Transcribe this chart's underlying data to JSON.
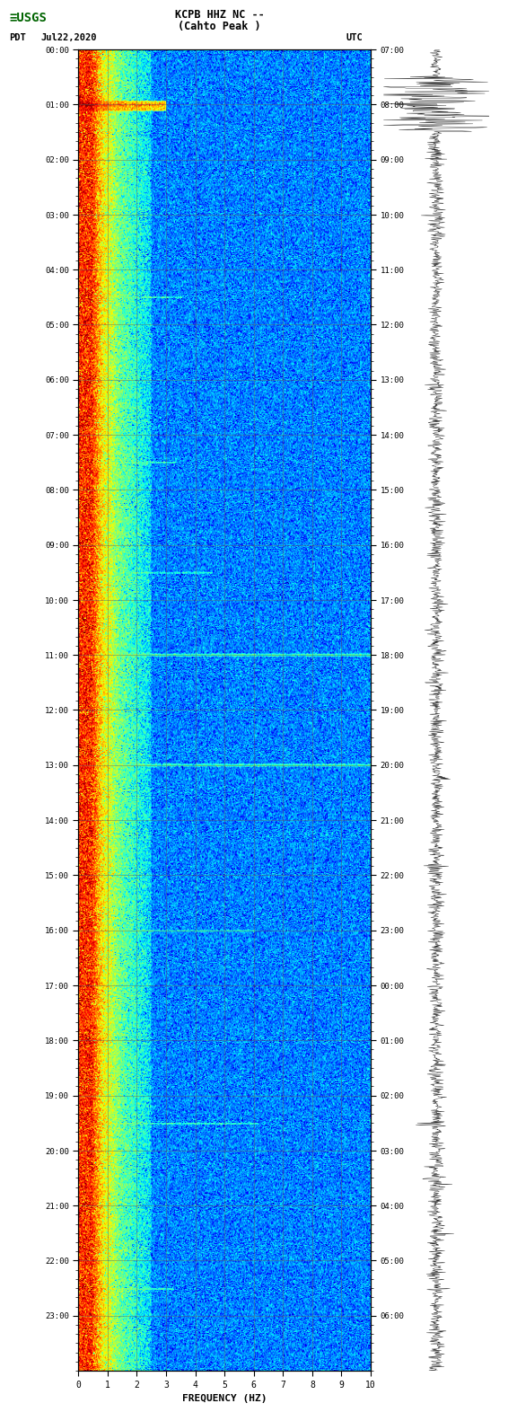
{
  "title_line1": "KCPB HHZ NC --",
  "title_line2": "(Cahto Peak )",
  "label_left": "PDT",
  "label_date": "Jul22,2020",
  "label_right": "UTC",
  "xlabel": "FREQUENCY (HZ)",
  "xticks": [
    0,
    1,
    2,
    3,
    4,
    5,
    6,
    7,
    8,
    9,
    10
  ],
  "yticks_left": [
    "00:00",
    "01:00",
    "02:00",
    "03:00",
    "04:00",
    "05:00",
    "06:00",
    "07:00",
    "08:00",
    "09:00",
    "10:00",
    "11:00",
    "12:00",
    "13:00",
    "14:00",
    "15:00",
    "16:00",
    "17:00",
    "18:00",
    "19:00",
    "20:00",
    "21:00",
    "22:00",
    "23:00"
  ],
  "yticks_right": [
    "07:00",
    "08:00",
    "09:00",
    "10:00",
    "11:00",
    "12:00",
    "13:00",
    "14:00",
    "15:00",
    "16:00",
    "17:00",
    "18:00",
    "19:00",
    "20:00",
    "21:00",
    "22:00",
    "23:00",
    "00:00",
    "01:00",
    "02:00",
    "03:00",
    "04:00",
    "05:00",
    "06:00"
  ],
  "freq_max": 10,
  "time_hours": 24,
  "colormap": "jet",
  "grid_color": "#606060",
  "usgs_green": "#006400",
  "fig_width": 5.52,
  "fig_height": 16.13
}
